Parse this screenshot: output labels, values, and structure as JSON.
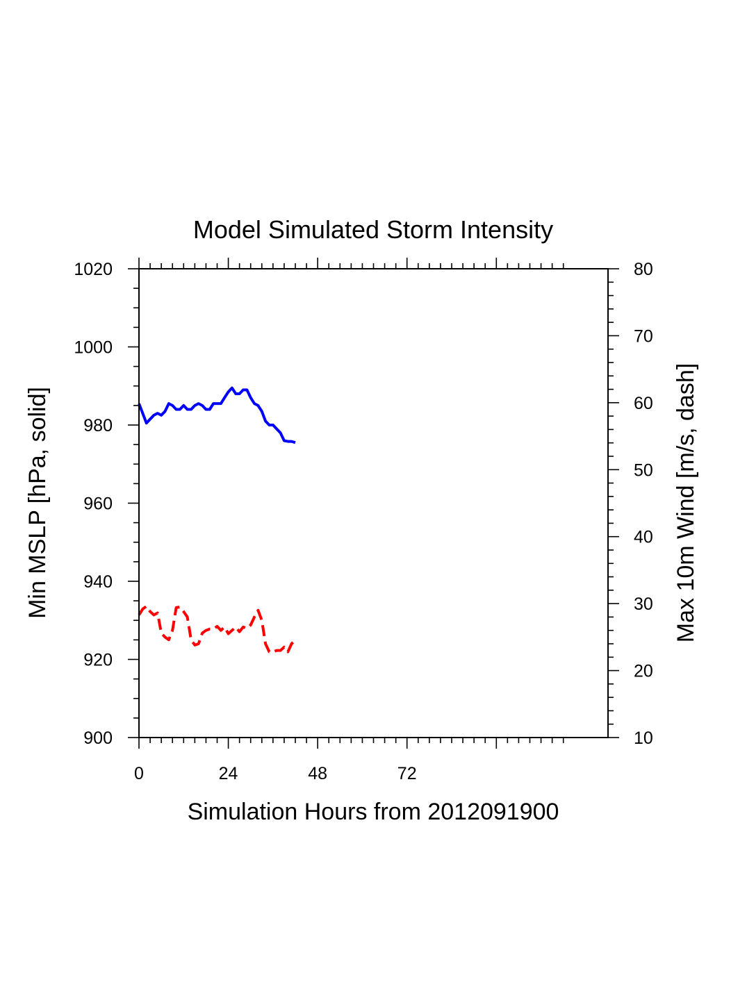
{
  "chart_data": {
    "type": "line",
    "title": "Model Simulated Storm Intensity",
    "xlabel": "Simulation Hours from 2012091900",
    "ylabel_left": "Min MSLP  [hPa, solid]",
    "ylabel_right": "Max 10m Wind  [m/s, dash]",
    "xlim": [
      0,
      126
    ],
    "ylim_left": [
      900,
      1020
    ],
    "ylim_right": [
      10,
      80
    ],
    "x_ticks": [
      0,
      24,
      48,
      72
    ],
    "y_ticks_left": [
      900,
      920,
      940,
      960,
      980,
      1000,
      1020
    ],
    "y_ticks_right": [
      10,
      20,
      30,
      40,
      50,
      60,
      70,
      80
    ],
    "grid": false,
    "series": [
      {
        "axis": "left",
        "color": "#0000ff",
        "style": "solid",
        "x": [
          0,
          2,
          4,
          5,
          6,
          7,
          8,
          9,
          10,
          11,
          12,
          13,
          14,
          15,
          16,
          17,
          18,
          19,
          20,
          21,
          22,
          23,
          24,
          25,
          26,
          27,
          28,
          29,
          30,
          31,
          32,
          33,
          34,
          35,
          36,
          37,
          38,
          39,
          40,
          41,
          42
        ],
        "values": [
          985.5,
          980.5,
          982.5,
          983,
          982.5,
          983.5,
          985.5,
          985,
          984,
          984,
          985,
          984,
          984,
          985,
          985.5,
          985,
          984,
          984,
          985.5,
          985.5,
          985.5,
          987,
          988.5,
          989.5,
          988,
          988,
          989,
          989,
          987,
          985.5,
          985,
          983.5,
          981,
          980,
          980,
          979,
          978,
          976,
          975.8,
          975.8,
          975.5
        ]
      },
      {
        "axis": "right",
        "color": "#ff0000",
        "style": "dash",
        "x": [
          0,
          1,
          2,
          3,
          4,
          5,
          6,
          7,
          8,
          9,
          10,
          11,
          12,
          13,
          14,
          15,
          16,
          17,
          18,
          19,
          20,
          21,
          22,
          23,
          24,
          25,
          26,
          27,
          28,
          29,
          30,
          31,
          32,
          33,
          34,
          35,
          36,
          37,
          38,
          39,
          40,
          41,
          42
        ],
        "values": [
          28.3,
          29.2,
          29.6,
          28.8,
          28.3,
          28.6,
          25.6,
          25.0,
          24.6,
          26.0,
          29.4,
          29.5,
          28.8,
          28.0,
          24.6,
          23.8,
          24.0,
          25.6,
          26.0,
          26.2,
          26.2,
          26.6,
          26.0,
          26.5,
          25.5,
          26.0,
          26.5,
          25.8,
          26.5,
          26.3,
          26.8,
          28.0,
          29.0,
          27.5,
          24.0,
          22.8,
          22.8,
          23.0,
          23.0,
          23.5,
          22.8,
          24.0,
          24.6
        ]
      }
    ]
  }
}
